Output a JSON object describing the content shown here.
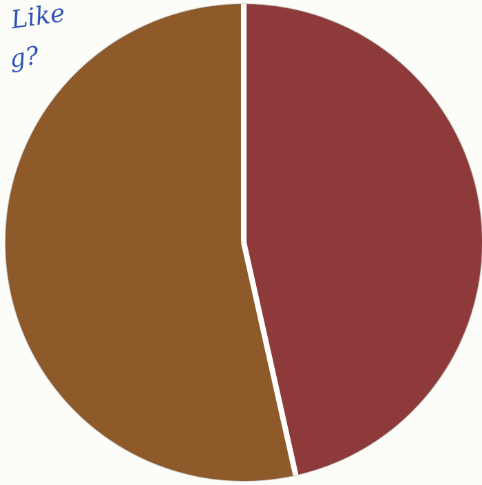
{
  "handwritten_text": {
    "line1": "Like",
    "line2": "g?"
  },
  "chart_data": {
    "type": "pie",
    "title": "",
    "slices": [
      {
        "label": "",
        "value": 46.5,
        "color": "#8e3a3b"
      },
      {
        "label": "",
        "value": 53.5,
        "color": "#8f5a2a"
      }
    ],
    "start_angle_degrees": 0,
    "direction": "clockwise",
    "legend": "none"
  },
  "colors": {
    "slice_1": "#8e3a3b",
    "slice_2": "#8f5a2a",
    "separator": "#ffffff",
    "handwriting": "#2f53b8",
    "paper": "#fcfcf9"
  }
}
